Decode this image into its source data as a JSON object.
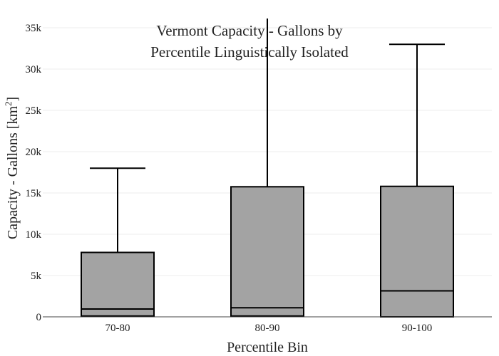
{
  "chart_data": {
    "type": "box",
    "title_lines": [
      "Vermont Capacity - Gallons by",
      "Percentile Linguistically Isolated"
    ],
    "xlabel": "Percentile Bin",
    "ylabel": "Capacity - Gallons  [km",
    "ylabel_sup": "2",
    "ylabel_end": "]",
    "ylim": [
      0,
      36000
    ],
    "yticks": [
      {
        "value": 0,
        "label": "0"
      },
      {
        "value": 5000,
        "label": "5k"
      },
      {
        "value": 10000,
        "label": "10k"
      },
      {
        "value": 15000,
        "label": "15k"
      },
      {
        "value": 20000,
        "label": "20k"
      },
      {
        "value": 25000,
        "label": "25k"
      },
      {
        "value": 30000,
        "label": "30k"
      },
      {
        "value": 35000,
        "label": "35k"
      }
    ],
    "categories": [
      "70-80",
      "80-90",
      "90-100"
    ],
    "boxes": [
      {
        "category": "70-80",
        "lower_fence": 100,
        "q1": 100,
        "median": 950,
        "q3": 7800,
        "upper_fence": 18000
      },
      {
        "category": "80-90",
        "lower_fence": 100,
        "q1": 100,
        "median": 1100,
        "q3": 15750,
        "upper_fence": 36500
      },
      {
        "category": "90-100",
        "lower_fence": 0,
        "q1": 0,
        "median": 3150,
        "q3": 15800,
        "upper_fence": 33000
      }
    ],
    "grid": true,
    "colors": {
      "box_fill": "#a3a3a3",
      "box_line": "#000000",
      "grid": "#eeeeee",
      "axis": "#444444"
    }
  }
}
